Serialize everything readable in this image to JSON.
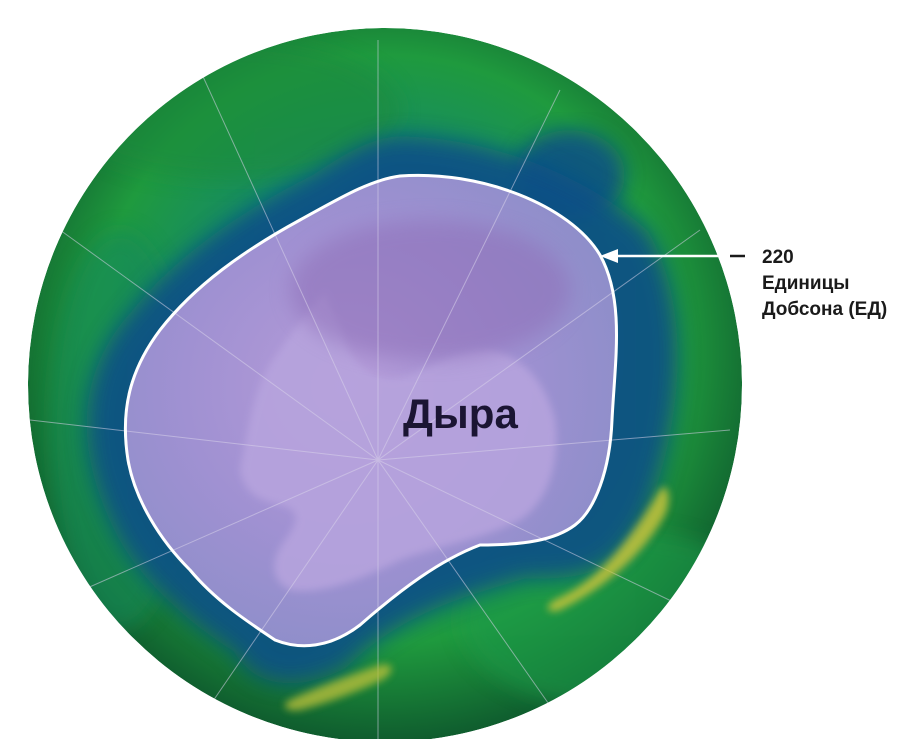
{
  "map": {
    "hole_label": "Дыра",
    "contour": {
      "value": "220",
      "unit_line1": "Единицы",
      "unit_line2": "Добсона (ЕД)"
    }
  },
  "colors": {
    "ocean_green": "#1f9a3e",
    "deep_blue": "#0b4f86",
    "ozone_hole": "#9f90cf",
    "hole_center": "#b59bd8",
    "contour_line": "#ffffff",
    "high_ozone": "#c8c43a"
  },
  "icons": {
    "pointer": "arrow-left-icon"
  }
}
